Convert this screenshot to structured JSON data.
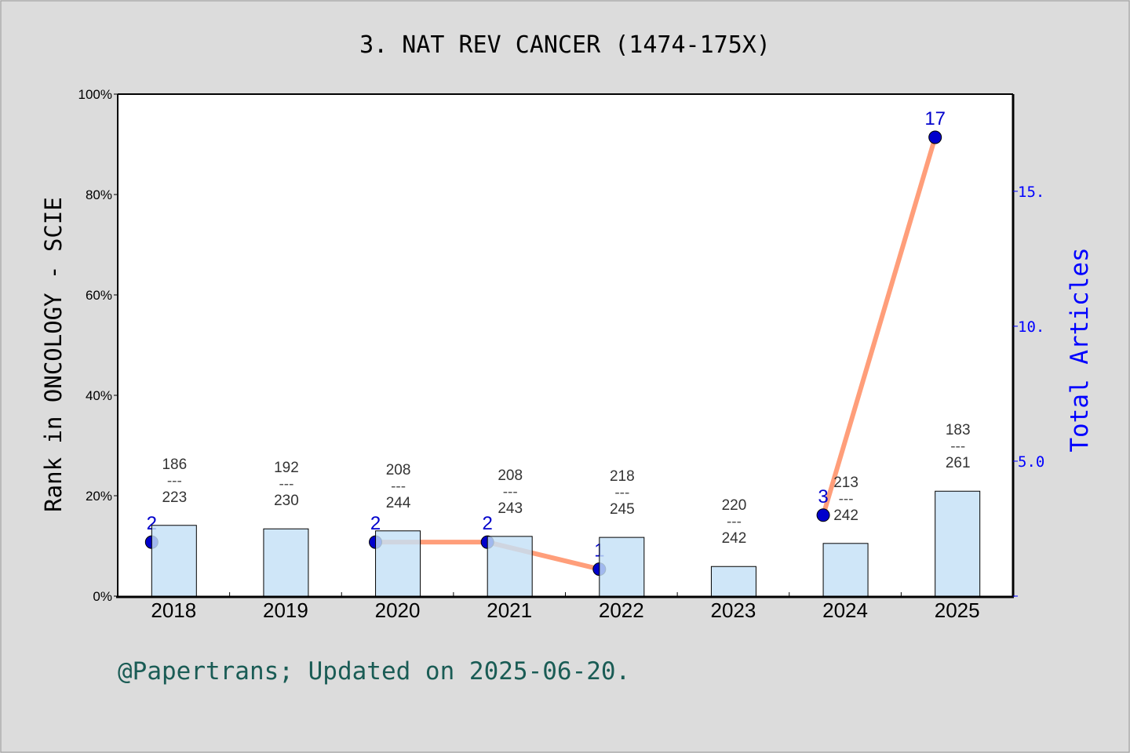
{
  "chart_data": {
    "type": "bar+line",
    "title": "3. NAT REV CANCER (1474-175X)",
    "ylabel": "Rank in ONCOLOGY - SCIE",
    "y2label": "Total Articles",
    "categories": [
      "2018",
      "2019",
      "2020",
      "2021",
      "2022",
      "2023",
      "2024",
      "2025"
    ],
    "ylim": [
      0,
      100
    ],
    "yticks": [
      "0%",
      "20%",
      "40%",
      "60%",
      "80%",
      "100%"
    ],
    "y2lim": [
      0,
      18.6
    ],
    "y2ticks": [
      "5.0",
      "10.",
      "15."
    ],
    "bar_series": {
      "values_percent": [
        14.1,
        13.4,
        13.0,
        11.9,
        11.7,
        5.9,
        10.5,
        20.9
      ],
      "rank": [
        "186",
        "192",
        "208",
        "208",
        "218",
        "220",
        "213",
        "183"
      ],
      "total": [
        "223",
        "230",
        "244",
        "243",
        "245",
        "242",
        "242",
        "261"
      ],
      "separator": "---"
    },
    "line_series": {
      "values": [
        2,
        null,
        2,
        2,
        1,
        null,
        3,
        17
      ],
      "labels": [
        "2",
        null,
        "2",
        "2",
        "1",
        null,
        "3",
        "17"
      ]
    },
    "colors": {
      "bar": "#c5e0f7",
      "line": "#ff9e7a",
      "point": "#0000cc",
      "y2": "#0000ff",
      "footer": "#1a5c55",
      "background": "#dcdcdc"
    },
    "grid": false
  },
  "footer": "@Papertrans; Updated on 2025-06-20."
}
